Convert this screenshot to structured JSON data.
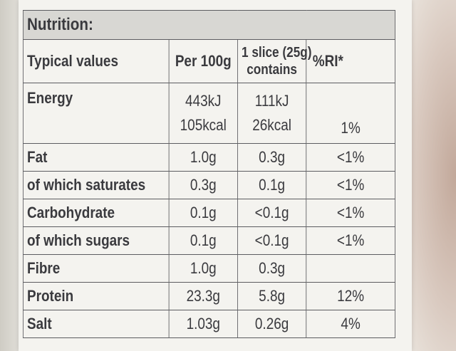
{
  "title": "Nutrition:",
  "headers": {
    "name": "Typical values",
    "per100": "Per 100g",
    "slice_line1": "1 slice (25g)",
    "slice_line2": "contains",
    "ri": "%RI*"
  },
  "energy": {
    "name": "Energy",
    "per100_kj": "443kJ",
    "per100_kcal": "105kcal",
    "slice_kj": "111kJ",
    "slice_kcal": "26kcal",
    "ri": "1%"
  },
  "rows": [
    {
      "name": "Fat",
      "per100": "1.0g",
      "slice": "0.3g",
      "ri": "<1%"
    },
    {
      "name": "of which saturates",
      "per100": "0.3g",
      "slice": "0.1g",
      "ri": "<1%"
    },
    {
      "name": "Carbohydrate",
      "per100": "0.1g",
      "slice": "<0.1g",
      "ri": "<1%"
    },
    {
      "name": "of which sugars",
      "per100": "0.1g",
      "slice": "<0.1g",
      "ri": "<1%"
    },
    {
      "name": "Fibre",
      "per100": "1.0g",
      "slice": "0.3g",
      "ri": ""
    },
    {
      "name": "Protein",
      "per100": "23.3g",
      "slice": "5.8g",
      "ri": "12%"
    },
    {
      "name": "Salt",
      "per100": "1.03g",
      "slice": "0.26g",
      "ri": "4%"
    }
  ]
}
